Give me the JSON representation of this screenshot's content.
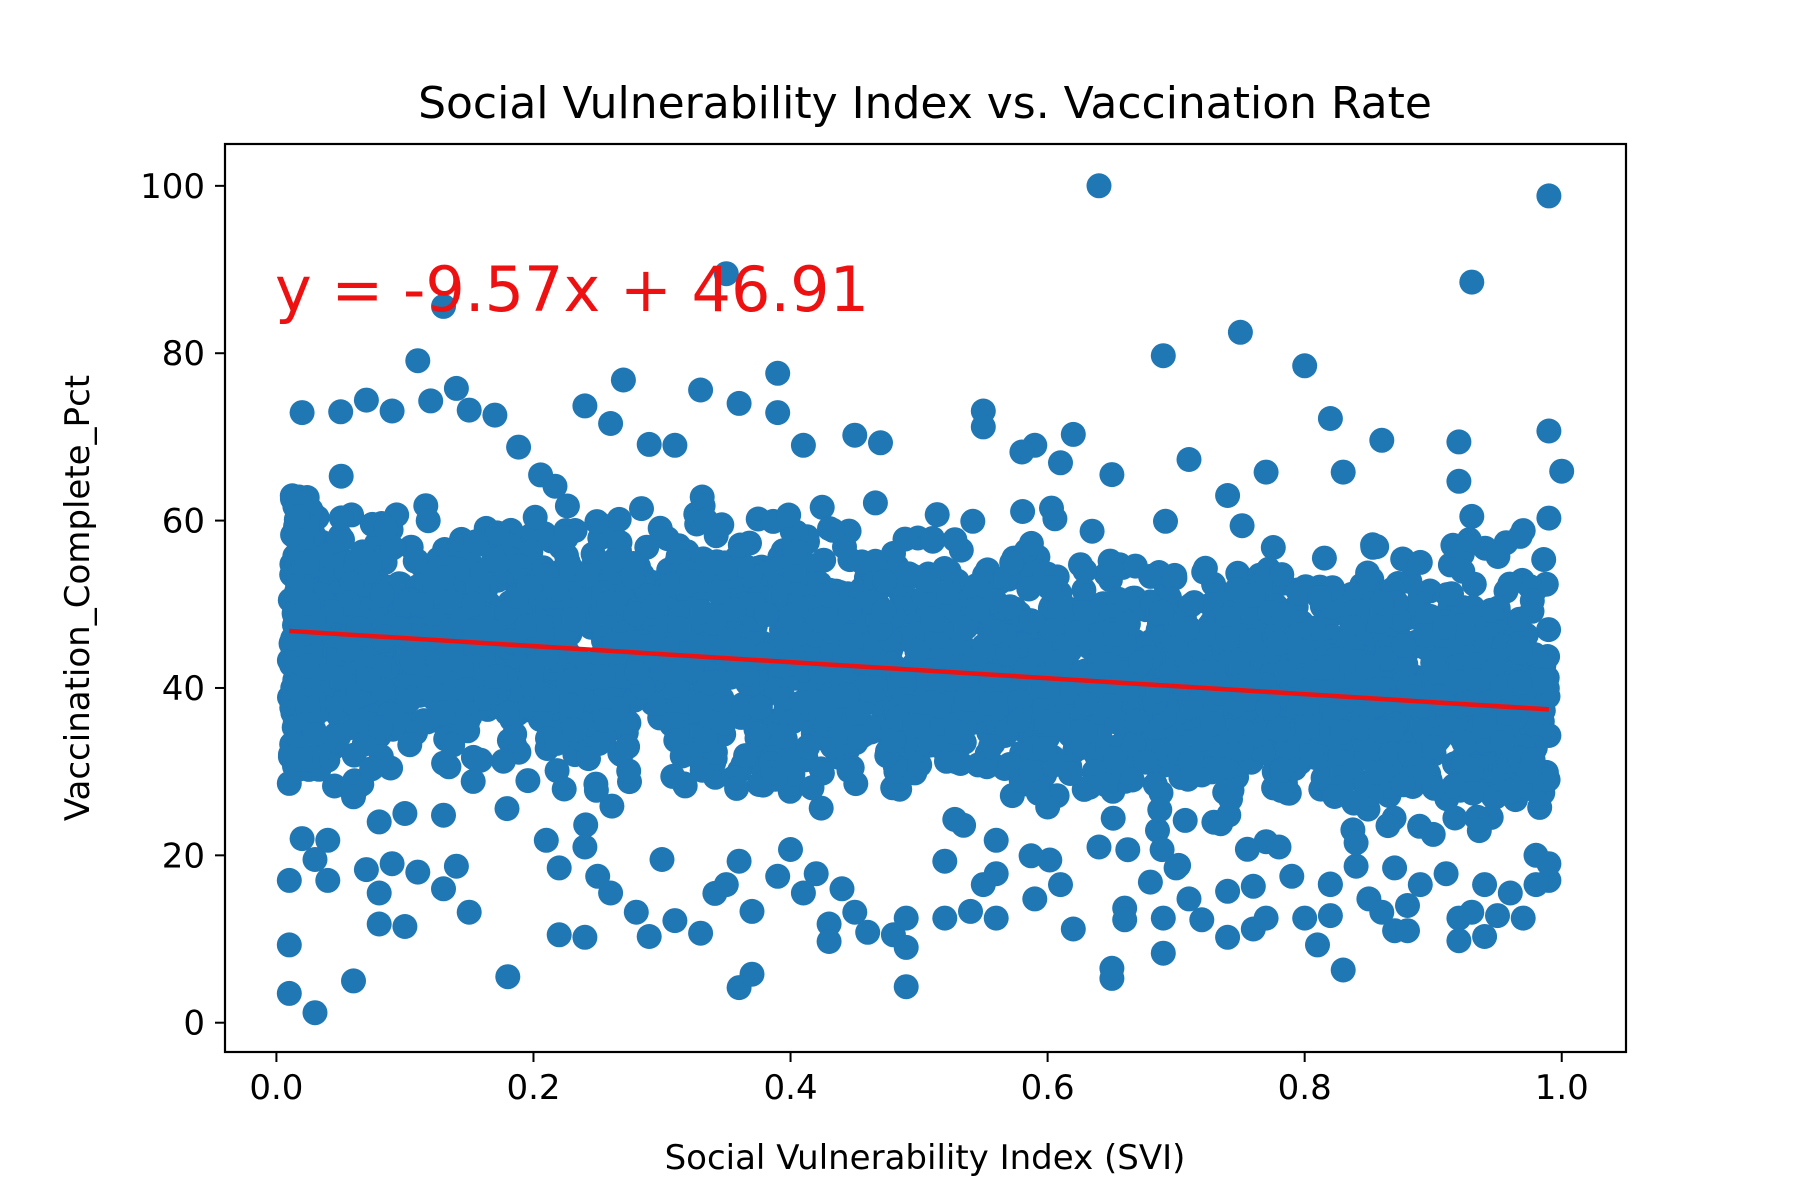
{
  "chart_data": {
    "type": "scatter",
    "title": "Social Vulnerability Index vs. Vaccination Rate",
    "xlabel": "Social Vulnerability Index (SVI)",
    "ylabel": "Vaccination_Complete_Pct",
    "xlim": [
      -0.04,
      1.05
    ],
    "ylim": [
      -3.5,
      105
    ],
    "xticks": [
      0.0,
      0.2,
      0.4,
      0.6,
      0.8,
      1.0
    ],
    "xtick_labels": [
      "0.0",
      "0.2",
      "0.4",
      "0.6",
      "0.8",
      "1.0"
    ],
    "yticks": [
      0,
      20,
      40,
      60,
      80,
      100
    ],
    "ytick_labels": [
      "0",
      "20",
      "40",
      "60",
      "80",
      "100"
    ],
    "grid": false,
    "legend": "none",
    "marker_color": "#1f77b4",
    "line_color": "#ee1111",
    "annotation": "y = -9.57x + 46.91",
    "regression": {
      "slope": -9.57,
      "intercept": 46.91,
      "x_range": [
        0.01,
        0.99
      ]
    },
    "points_note_dense_cloud": "core band roughly 28-60 across full x range",
    "outliers": [
      [
        0.64,
        100.0
      ],
      [
        0.99,
        98.8
      ],
      [
        0.35,
        89.5
      ],
      [
        0.93,
        88.5
      ],
      [
        0.13,
        85.6
      ],
      [
        0.75,
        82.5
      ],
      [
        0.69,
        79.7
      ],
      [
        0.11,
        79.1
      ],
      [
        0.8,
        78.5
      ],
      [
        0.39,
        77.6
      ],
      [
        0.27,
        76.8
      ],
      [
        0.14,
        75.8
      ],
      [
        0.33,
        75.6
      ],
      [
        0.07,
        74.4
      ],
      [
        0.36,
        74.0
      ],
      [
        0.12,
        74.3
      ],
      [
        0.24,
        73.7
      ],
      [
        0.15,
        73.2
      ],
      [
        0.05,
        73.0
      ],
      [
        0.02,
        72.9
      ],
      [
        0.09,
        73.1
      ],
      [
        0.39,
        72.9
      ],
      [
        0.55,
        73.1
      ],
      [
        0.82,
        72.2
      ],
      [
        0.17,
        72.6
      ],
      [
        0.26,
        71.6
      ],
      [
        0.99,
        70.7
      ],
      [
        0.62,
        70.3
      ],
      [
        0.45,
        70.2
      ],
      [
        0.86,
        69.6
      ],
      [
        0.92,
        69.4
      ],
      [
        0.47,
        69.3
      ],
      [
        0.29,
        69.1
      ],
      [
        0.31,
        69.0
      ],
      [
        0.59,
        69.0
      ],
      [
        0.41,
        69.0
      ],
      [
        0.55,
        71.2
      ],
      [
        0.58,
        68.2
      ],
      [
        1.0,
        65.9
      ],
      [
        0.61,
        66.9
      ],
      [
        0.92,
        64.7
      ],
      [
        0.77,
        65.8
      ],
      [
        0.83,
        65.8
      ],
      [
        0.71,
        67.3
      ],
      [
        0.65,
        65.5
      ],
      [
        0.74,
        63.0
      ],
      [
        0.93,
        60.5
      ],
      [
        0.99,
        60.3
      ],
      [
        0.97,
        58.8
      ],
      [
        0.89,
        55.0
      ],
      [
        0.01,
        28.6
      ],
      [
        0.04,
        21.8
      ],
      [
        0.02,
        22.0
      ],
      [
        0.06,
        27.0
      ],
      [
        0.08,
        24.0
      ],
      [
        0.1,
        25.0
      ],
      [
        0.13,
        24.8
      ],
      [
        0.09,
        19.0
      ],
      [
        0.03,
        19.5
      ],
      [
        0.04,
        17.0
      ],
      [
        0.01,
        17.0
      ],
      [
        0.07,
        18.3
      ],
      [
        0.08,
        15.5
      ],
      [
        0.13,
        16.0
      ],
      [
        0.14,
        18.7
      ],
      [
        0.11,
        18.0
      ],
      [
        0.15,
        13.2
      ],
      [
        0.08,
        11.8
      ],
      [
        0.1,
        11.5
      ],
      [
        0.01,
        9.3
      ],
      [
        0.01,
        3.5
      ],
      [
        0.03,
        1.2
      ],
      [
        0.06,
        5.0
      ],
      [
        0.18,
        5.5
      ],
      [
        0.21,
        21.8
      ],
      [
        0.22,
        18.5
      ],
      [
        0.24,
        21.0
      ],
      [
        0.25,
        17.5
      ],
      [
        0.26,
        15.5
      ],
      [
        0.22,
        10.5
      ],
      [
        0.24,
        10.2
      ],
      [
        0.28,
        13.2
      ],
      [
        0.29,
        10.3
      ],
      [
        0.3,
        19.5
      ],
      [
        0.31,
        12.2
      ],
      [
        0.33,
        10.7
      ],
      [
        0.35,
        16.5
      ],
      [
        0.36,
        19.3
      ],
      [
        0.37,
        13.3
      ],
      [
        0.36,
        4.2
      ],
      [
        0.37,
        5.8
      ],
      [
        0.39,
        17.5
      ],
      [
        0.4,
        20.7
      ],
      [
        0.41,
        15.5
      ],
      [
        0.42,
        17.8
      ],
      [
        0.43,
        11.8
      ],
      [
        0.43,
        9.7
      ],
      [
        0.44,
        16.0
      ],
      [
        0.45,
        13.2
      ],
      [
        0.46,
        10.8
      ],
      [
        0.48,
        10.5
      ],
      [
        0.49,
        12.5
      ],
      [
        0.49,
        9.0
      ],
      [
        0.49,
        4.3
      ],
      [
        0.52,
        12.5
      ],
      [
        0.52,
        19.3
      ],
      [
        0.54,
        13.3
      ],
      [
        0.55,
        16.5
      ],
      [
        0.56,
        12.5
      ],
      [
        0.56,
        17.8
      ],
      [
        0.56,
        21.8
      ],
      [
        0.59,
        14.8
      ],
      [
        0.61,
        16.5
      ],
      [
        0.62,
        11.2
      ],
      [
        0.64,
        21.0
      ],
      [
        0.65,
        5.3
      ],
      [
        0.65,
        6.5
      ],
      [
        0.66,
        13.7
      ],
      [
        0.66,
        12.3
      ],
      [
        0.68,
        16.8
      ],
      [
        0.69,
        8.3
      ],
      [
        0.69,
        12.5
      ],
      [
        0.7,
        18.5
      ],
      [
        0.71,
        14.8
      ],
      [
        0.72,
        12.3
      ],
      [
        0.74,
        10.2
      ],
      [
        0.74,
        15.7
      ],
      [
        0.76,
        11.2
      ],
      [
        0.76,
        16.3
      ],
      [
        0.77,
        12.5
      ],
      [
        0.78,
        21.0
      ],
      [
        0.79,
        17.5
      ],
      [
        0.8,
        12.5
      ],
      [
        0.81,
        9.3
      ],
      [
        0.82,
        16.5
      ],
      [
        0.82,
        12.8
      ],
      [
        0.83,
        6.3
      ],
      [
        0.84,
        18.7
      ],
      [
        0.84,
        21.5
      ],
      [
        0.85,
        14.8
      ],
      [
        0.86,
        13.2
      ],
      [
        0.87,
        18.5
      ],
      [
        0.87,
        11.0
      ],
      [
        0.88,
        11.0
      ],
      [
        0.88,
        14.0
      ],
      [
        0.89,
        16.5
      ],
      [
        0.9,
        22.5
      ],
      [
        0.91,
        17.8
      ],
      [
        0.92,
        12.5
      ],
      [
        0.92,
        9.8
      ],
      [
        0.93,
        13.2
      ],
      [
        0.94,
        10.3
      ],
      [
        0.94,
        16.5
      ],
      [
        0.95,
        12.8
      ],
      [
        0.96,
        15.5
      ],
      [
        0.97,
        12.5
      ],
      [
        0.98,
        20.0
      ],
      [
        0.99,
        17.0
      ],
      [
        0.99,
        19.0
      ],
      [
        0.98,
        16.5
      ]
    ]
  }
}
